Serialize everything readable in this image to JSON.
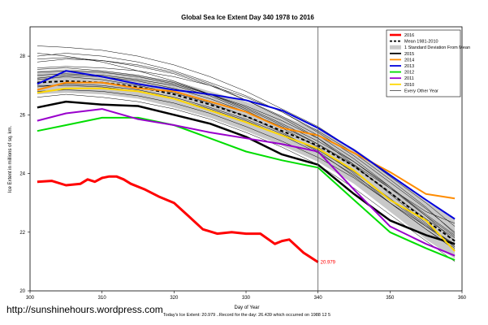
{
  "chart_data": {
    "type": "line",
    "title": "Global Sea Ice Extent Day 340 1978 to 2016",
    "xlabel": "Day of Year",
    "ylabel": "Ice Extent in millions of sq. km.",
    "xlim": [
      300,
      360
    ],
    "ylim": [
      20,
      29
    ],
    "x_ticks": [
      300,
      310,
      320,
      330,
      340,
      350,
      360
    ],
    "y_ticks": [
      20,
      22,
      24,
      26,
      28
    ],
    "marker_day": 340,
    "end_label": "20.979",
    "legend": [
      {
        "name": "2016",
        "color": "#ff0000",
        "style": "thick"
      },
      {
        "name": "Mean 1981-2010",
        "color": "#000000",
        "style": "dashed"
      },
      {
        "name": "1 Standard Deviation From Mean",
        "color": "#c8c8c8",
        "style": "band"
      },
      {
        "name": "2015",
        "color": "#000000",
        "style": "solid"
      },
      {
        "name": "2014",
        "color": "#ff8c00",
        "style": "solid"
      },
      {
        "name": "2013",
        "color": "#0000dd",
        "style": "solid"
      },
      {
        "name": "2012",
        "color": "#00dd00",
        "style": "solid"
      },
      {
        "name": "2011",
        "color": "#9900cc",
        "style": "solid"
      },
      {
        "name": "2010",
        "color": "#ffd700",
        "style": "solid"
      },
      {
        "name": "Every Other Year",
        "color": "#000000",
        "style": "thin"
      }
    ],
    "series": [
      {
        "name": "2016",
        "color": "#ff0000",
        "width": 3,
        "x": [
          301,
          303,
          305,
          307,
          308,
          309,
          310,
          311,
          312,
          313,
          314,
          316,
          318,
          320,
          322,
          324,
          326,
          328,
          330,
          332,
          334,
          335,
          336,
          338,
          340
        ],
        "y": [
          23.72,
          23.75,
          23.6,
          23.65,
          23.8,
          23.72,
          23.85,
          23.9,
          23.9,
          23.8,
          23.65,
          23.45,
          23.2,
          23.0,
          22.55,
          22.1,
          21.95,
          22.0,
          21.95,
          21.95,
          21.6,
          21.7,
          21.75,
          21.3,
          20.98
        ]
      },
      {
        "name": "Mean 1981-2010",
        "color": "#000000",
        "width": 2,
        "dash": "4,3",
        "x": [
          301,
          305,
          310,
          315,
          320,
          325,
          330,
          335,
          340,
          345,
          350,
          355,
          359
        ],
        "y": [
          27.1,
          27.15,
          27.1,
          26.95,
          26.7,
          26.35,
          25.95,
          25.45,
          24.95,
          24.25,
          23.35,
          22.4,
          21.7
        ]
      },
      {
        "name": "2015",
        "color": "#000000",
        "width": 2.5,
        "x": [
          301,
          305,
          310,
          315,
          320,
          325,
          330,
          335,
          340,
          345,
          350,
          355,
          359
        ],
        "y": [
          26.25,
          26.45,
          26.35,
          26.3,
          26.0,
          25.7,
          25.25,
          24.65,
          24.3,
          23.3,
          22.4,
          21.9,
          21.6
        ]
      },
      {
        "name": "2014",
        "color": "#ff8c00",
        "width": 2,
        "x": [
          301,
          305,
          310,
          315,
          320,
          325,
          330,
          335,
          340,
          345,
          350,
          355,
          359
        ],
        "y": [
          26.85,
          27.1,
          27.1,
          26.9,
          26.8,
          26.45,
          26.1,
          25.55,
          25.3,
          24.7,
          24.05,
          23.3,
          23.15
        ]
      },
      {
        "name": "2013",
        "color": "#0000dd",
        "width": 2,
        "x": [
          301,
          305,
          310,
          315,
          320,
          325,
          330,
          335,
          340,
          345,
          350,
          355,
          359
        ],
        "y": [
          27.05,
          27.5,
          27.3,
          27.05,
          26.85,
          26.7,
          26.5,
          26.15,
          25.55,
          24.8,
          23.95,
          23.1,
          22.45
        ]
      },
      {
        "name": "2012",
        "color": "#00dd00",
        "width": 2,
        "x": [
          301,
          305,
          310,
          315,
          320,
          325,
          330,
          335,
          340,
          345,
          350,
          355,
          359
        ],
        "y": [
          25.45,
          25.65,
          25.9,
          25.9,
          25.65,
          25.2,
          24.75,
          24.45,
          24.2,
          23.1,
          22.0,
          21.45,
          21.05
        ]
      },
      {
        "name": "2011",
        "color": "#9900cc",
        "width": 2,
        "x": [
          301,
          305,
          310,
          315,
          320,
          325,
          330,
          335,
          340,
          345,
          350,
          355,
          359
        ],
        "y": [
          25.8,
          26.05,
          26.2,
          25.85,
          25.65,
          25.4,
          25.2,
          25.0,
          24.75,
          23.45,
          22.2,
          21.6,
          21.2
        ]
      },
      {
        "name": "2010",
        "color": "#ffd700",
        "width": 2,
        "x": [
          301,
          305,
          310,
          315,
          320,
          325,
          330,
          335,
          340,
          345,
          350,
          355,
          359
        ],
        "y": [
          26.75,
          26.9,
          26.9,
          26.8,
          26.55,
          26.15,
          25.75,
          25.3,
          24.85,
          24.1,
          23.1,
          22.4,
          21.35
        ]
      }
    ],
    "std_band": {
      "x": [
        301,
        305,
        310,
        315,
        320,
        325,
        330,
        335,
        340,
        345,
        350,
        355,
        359
      ],
      "upper": [
        27.5,
        27.55,
        27.5,
        27.35,
        27.15,
        26.8,
        26.45,
        25.95,
        25.5,
        24.85,
        24.0,
        23.05,
        22.45
      ],
      "lower": [
        26.7,
        26.75,
        26.7,
        26.55,
        26.25,
        25.9,
        25.45,
        24.95,
        24.4,
        23.65,
        22.7,
        21.75,
        21.1
      ]
    },
    "other_years": {
      "x": [
        301,
        305,
        310,
        315,
        320,
        325,
        330,
        335,
        340,
        345,
        350,
        355,
        359
      ],
      "lines": [
        [
          28.35,
          28.3,
          28.2,
          28.0,
          27.7,
          27.3,
          26.8,
          26.2,
          25.6,
          24.8,
          23.9,
          23.0,
          22.2
        ],
        [
          28.0,
          28.1,
          28.0,
          27.8,
          27.5,
          27.1,
          26.65,
          26.1,
          25.4,
          24.6,
          23.7,
          22.8,
          22.0
        ],
        [
          27.8,
          27.9,
          27.85,
          27.7,
          27.45,
          27.05,
          26.5,
          25.9,
          25.2,
          24.3,
          23.3,
          22.3,
          21.5
        ],
        [
          27.55,
          27.6,
          27.5,
          27.35,
          27.1,
          26.7,
          26.25,
          25.7,
          25.1,
          24.4,
          23.55,
          22.6,
          21.9
        ],
        [
          27.35,
          27.4,
          27.35,
          27.2,
          27.0,
          26.65,
          26.15,
          25.55,
          24.9,
          24.0,
          23.0,
          22.1,
          21.4
        ],
        [
          27.2,
          27.3,
          27.2,
          27.0,
          26.75,
          26.4,
          25.95,
          25.4,
          24.75,
          23.9,
          23.0,
          22.1,
          21.45
        ],
        [
          27.0,
          27.0,
          26.95,
          26.8,
          26.55,
          26.2,
          25.8,
          25.3,
          24.7,
          23.95,
          23.1,
          22.2,
          21.6
        ],
        [
          26.8,
          26.85,
          26.8,
          26.65,
          26.4,
          26.05,
          25.6,
          25.1,
          24.55,
          23.85,
          23.0,
          22.2,
          21.5
        ],
        [
          26.6,
          26.7,
          26.6,
          26.45,
          26.2,
          25.85,
          25.4,
          24.9,
          24.3,
          23.5,
          22.6,
          21.7,
          21.0
        ],
        [
          27.6,
          27.65,
          27.6,
          27.5,
          27.3,
          27.0,
          26.6,
          26.1,
          25.45,
          24.7,
          23.8,
          22.85,
          21.95
        ],
        [
          27.9,
          27.95,
          27.85,
          27.65,
          27.4,
          27.0,
          26.5,
          25.95,
          25.3,
          24.5,
          23.55,
          22.55,
          21.7
        ],
        [
          27.25,
          27.35,
          27.3,
          27.15,
          26.9,
          26.55,
          26.1,
          25.6,
          25.0,
          24.25,
          23.35,
          22.45,
          21.8
        ],
        [
          26.95,
          27.05,
          27.0,
          26.85,
          26.6,
          26.25,
          25.85,
          25.35,
          24.8,
          24.05,
          23.15,
          22.25,
          21.55
        ],
        [
          28.1,
          28.0,
          27.8,
          27.5,
          27.15,
          26.7,
          26.2,
          25.65,
          25.0,
          24.3,
          23.5,
          22.7,
          22.3
        ],
        [
          27.45,
          27.5,
          27.45,
          27.3,
          27.05,
          26.7,
          26.3,
          25.8,
          25.2,
          24.4,
          23.5,
          22.55,
          21.85
        ]
      ]
    }
  },
  "credit": "http://sunshinehours.wordpress.com",
  "footnote": "Today's Ice Extent: 20.979   ..Record for the day: 26.439 which occurred on 1988 12 5"
}
